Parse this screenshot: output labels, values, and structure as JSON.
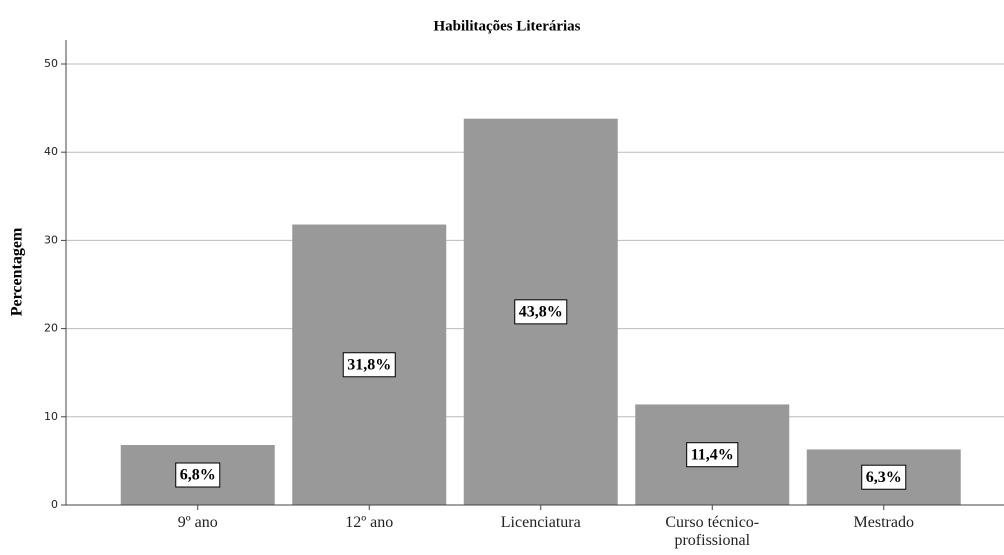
{
  "chart_data": {
    "type": "bar",
    "title": "Habilitações Literárias",
    "y_label": "Percentagem",
    "categories": [
      "9º ano",
      "12º ano",
      "Licenciatura",
      "Curso técnico-profissional",
      "Mestrado"
    ],
    "values": [
      6.8,
      31.8,
      43.8,
      11.4,
      6.3
    ],
    "value_labels": [
      "6,8%",
      "31,8%",
      "43,8%",
      "11,4%",
      "6,3%"
    ],
    "color": "#999999",
    "ylim": [
      0,
      50
    ],
    "yticks": [
      0,
      10,
      20,
      30,
      40,
      50
    ],
    "grid": true
  }
}
